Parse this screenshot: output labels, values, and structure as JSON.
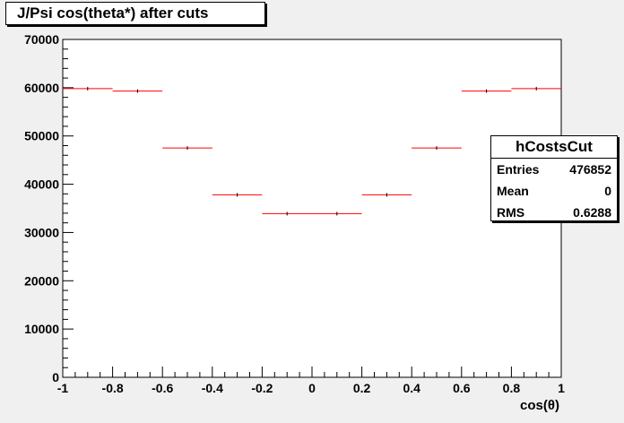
{
  "title": "J/Psi cos(theta*) after cuts",
  "stats": {
    "name": "hCostsCut",
    "rows": [
      {
        "label": "Entries",
        "value": "476852"
      },
      {
        "label": "Mean",
        "value": "0"
      },
      {
        "label": "RMS",
        "value": "0.6288"
      }
    ]
  },
  "chart_data": {
    "type": "histogram",
    "title": "J/Psi cos(theta*) after cuts",
    "xlabel": "cos(θ)",
    "ylabel": "",
    "xlim": [
      -1,
      1
    ],
    "ylim": [
      0,
      70000
    ],
    "bin_edges": [
      -1,
      -0.8,
      -0.6,
      -0.4,
      -0.2,
      0,
      0.2,
      0.4,
      0.6,
      0.8,
      1
    ],
    "values": [
      59800,
      59300,
      47500,
      37800,
      33900,
      33900,
      37800,
      47500,
      59300,
      59800
    ],
    "x_ticks": [
      -1,
      -0.8,
      -0.6,
      -0.4,
      -0.2,
      0,
      0.2,
      0.4,
      0.6,
      0.8,
      1
    ],
    "x_tick_labels": [
      "-1",
      "-0.8",
      "-0.6",
      "-0.4",
      "-0.2",
      "0",
      "0.2",
      "0.4",
      "0.6",
      "0.8",
      "1"
    ],
    "y_ticks": [
      0,
      10000,
      20000,
      30000,
      40000,
      50000,
      60000,
      70000
    ],
    "y_tick_labels": [
      "0",
      "10000",
      "20000",
      "30000",
      "40000",
      "50000",
      "60000",
      "70000"
    ],
    "grid": false,
    "legend": "none",
    "marker_color": "#ff0000",
    "error_bar_color": "#000000"
  }
}
